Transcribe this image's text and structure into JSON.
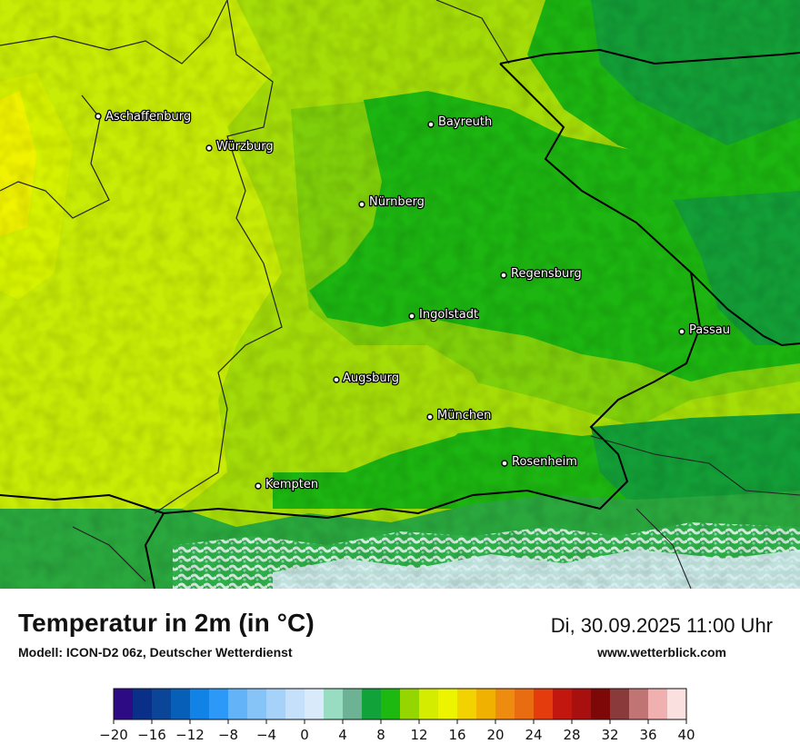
{
  "map": {
    "cities": [
      {
        "name": "Aschaffenburg"
      },
      {
        "name": "Bayreuth"
      },
      {
        "name": "Würzburg"
      },
      {
        "name": "Nürnberg"
      },
      {
        "name": "Regensburg"
      },
      {
        "name": "Ingolstadt"
      },
      {
        "name": "Passau"
      },
      {
        "name": "Augsburg"
      },
      {
        "name": "München"
      },
      {
        "name": "Rosenheim"
      },
      {
        "name": "Kempten"
      }
    ]
  },
  "footer": {
    "title": "Temperatur in 2m (in °C)",
    "model": "Modell: ICON-D2 06z, Deutscher Wetterdienst",
    "datetime": "Di, 30.09.2025 11:00 Uhr",
    "website": "www.wetterblick.com"
  },
  "legend": {
    "unit": "°C",
    "range": [
      -20,
      40
    ],
    "step": 2,
    "tick_labels": [
      "−20",
      "−16",
      "−12",
      "−8",
      "−4",
      "0",
      "4",
      "8",
      "12",
      "16",
      "20",
      "24",
      "28",
      "32",
      "36",
      "40"
    ],
    "colors": [
      "#2d0b85",
      "#0a2f88",
      "#0a4597",
      "#085fb8",
      "#1182e6",
      "#2c98f7",
      "#63b3f8",
      "#86c4f8",
      "#a6d2fa",
      "#c4e0fb",
      "#d9ebfb",
      "#98dcc2",
      "#6db295",
      "#12a23a",
      "#1db810",
      "#95d600",
      "#d4ec00",
      "#edf400",
      "#f2d200",
      "#f1b100",
      "#ee8c10",
      "#ea6c10",
      "#e43c0c",
      "#c2170e",
      "#a81010",
      "#7e0808",
      "#8a3a3a",
      "#c07474",
      "#f0b0b0",
      "#fbe0e0"
    ]
  }
}
